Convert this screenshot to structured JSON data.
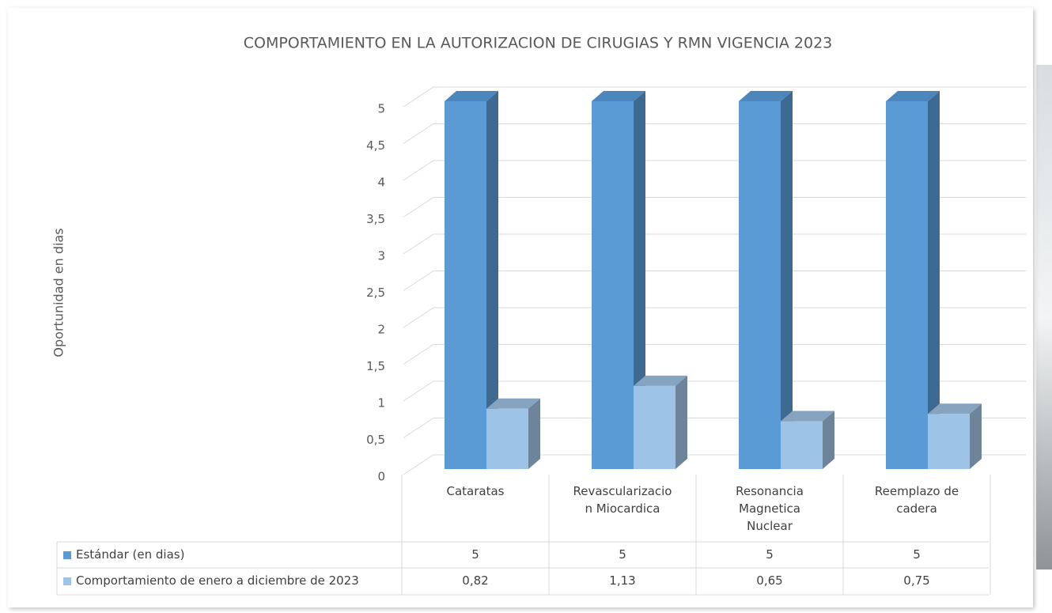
{
  "chart_data": {
    "type": "bar3d",
    "title": "COMPORTAMIENTO EN LA AUTORIZACION DE CIRUGIAS Y RMN VIGENCIA 2023",
    "y_label": "Oportunidad en dias",
    "categories": [
      "Cataratas",
      "Revascularizacion Miocardica",
      "Resonancia Magnetica Nuclear",
      "Reemplazo de cadera"
    ],
    "series": [
      {
        "name": "Estándar (en dias)",
        "color": "#5b9bd5",
        "side_color": "#3e6a92",
        "top_color": "#4d86bd",
        "values": [
          5,
          5,
          5,
          5
        ]
      },
      {
        "name": "Comportamiento de enero a diciembre de 2023",
        "color": "#9dc3e6",
        "side_color": "#6d849b",
        "top_color": "#86a3c0",
        "values": [
          0.82,
          1.13,
          0.65,
          0.75
        ],
        "value_labels": [
          "0,82",
          "1,13",
          "0,65",
          "0,75"
        ]
      }
    ],
    "ylim": [
      0,
      5
    ],
    "yticks": [
      0,
      {
        "value": 0.5,
        "label": "0,5"
      },
      1,
      {
        "value": 1.5,
        "label": "1,5"
      },
      2,
      {
        "value": 2.5,
        "label": "2,5"
      },
      3,
      {
        "value": 3.5,
        "label": "3,5"
      },
      4,
      {
        "value": 4.5,
        "label": "4,5"
      },
      5
    ],
    "grid": true,
    "data_table": true
  }
}
